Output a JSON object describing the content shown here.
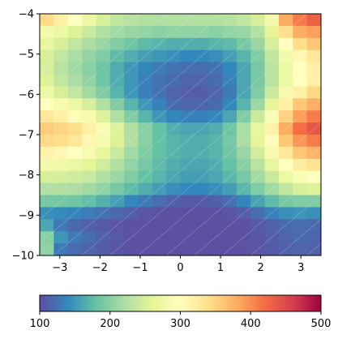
{
  "chart_data": {
    "type": "heatmap",
    "title": "",
    "xlabel": "",
    "ylabel": "",
    "xlim": [
      -3.5,
      3.5
    ],
    "ylim": [
      -10,
      -4
    ],
    "x_ticks": [
      -3,
      -2,
      -1,
      0,
      1,
      2,
      3
    ],
    "x_tick_labels": [
      "−3",
      "−2",
      "−1",
      "0",
      "1",
      "2",
      "3"
    ],
    "y_ticks": [
      -10,
      -9,
      -8,
      -7,
      -6,
      -5,
      -4
    ],
    "y_tick_labels": [
      "−10",
      "−9",
      "−8",
      "−7",
      "−6",
      "−5",
      "−4"
    ],
    "colormap": "Spectral_r",
    "colormap_stops": [
      "#5e4fa2",
      "#3288bd",
      "#66c2a5",
      "#abdda4",
      "#e6f598",
      "#ffffbf",
      "#fee08b",
      "#fdae61",
      "#f46d43",
      "#d53e4f",
      "#9e0142"
    ],
    "color_range": [
      100,
      500
    ],
    "colorbar": {
      "orientation": "horizontal",
      "placement": "bottom",
      "ticks": [
        100,
        200,
        300,
        400,
        500
      ],
      "tick_labels": [
        "100",
        "200",
        "300",
        "400",
        "500"
      ]
    },
    "grid": false,
    "x_centers": [
      -3.325,
      -2.975,
      -2.625,
      -2.275,
      -1.925,
      -1.575,
      -1.225,
      -0.875,
      -0.525,
      -0.175,
      0.175,
      0.525,
      0.875,
      1.225,
      1.575,
      1.925,
      2.275,
      2.625,
      2.975,
      3.325
    ],
    "y_centers": [
      -9.85,
      -9.55,
      -9.25,
      -8.95,
      -8.65,
      -8.35,
      -8.05,
      -7.75,
      -7.45,
      -7.15,
      -6.85,
      -6.55,
      -6.25,
      -5.95,
      -5.65,
      -5.35,
      -5.05,
      -4.75,
      -4.45,
      -4.15
    ],
    "z_rows_top_to_bottom": [
      [
        345,
        320,
        300,
        270,
        250,
        235,
        228,
        225,
        225,
        225,
        225,
        225,
        225,
        228,
        235,
        250,
        280,
        380,
        410,
        430
      ],
      [
        280,
        270,
        255,
        240,
        225,
        215,
        210,
        205,
        200,
        205,
        205,
        205,
        200,
        205,
        210,
        225,
        260,
        340,
        380,
        390
      ],
      [
        265,
        250,
        235,
        220,
        210,
        195,
        185,
        175,
        170,
        165,
        165,
        165,
        170,
        175,
        190,
        210,
        250,
        300,
        340,
        360
      ],
      [
        250,
        235,
        220,
        205,
        195,
        175,
        165,
        155,
        150,
        145,
        140,
        140,
        145,
        155,
        170,
        195,
        235,
        280,
        310,
        330
      ],
      [
        250,
        230,
        215,
        200,
        185,
        165,
        150,
        140,
        130,
        125,
        120,
        120,
        125,
        140,
        160,
        190,
        230,
        270,
        300,
        320
      ],
      [
        255,
        235,
        220,
        205,
        185,
        165,
        150,
        135,
        125,
        120,
        115,
        115,
        120,
        135,
        160,
        190,
        230,
        270,
        300,
        320
      ],
      [
        270,
        250,
        235,
        215,
        195,
        170,
        150,
        135,
        125,
        115,
        110,
        110,
        115,
        130,
        160,
        195,
        240,
        285,
        320,
        345
      ],
      [
        300,
        285,
        270,
        250,
        225,
        195,
        170,
        150,
        135,
        120,
        115,
        115,
        120,
        140,
        170,
        210,
        260,
        320,
        360,
        380
      ],
      [
        330,
        320,
        305,
        285,
        255,
        225,
        195,
        170,
        150,
        140,
        135,
        135,
        140,
        160,
        195,
        240,
        290,
        350,
        390,
        410
      ],
      [
        355,
        350,
        340,
        320,
        290,
        255,
        225,
        200,
        180,
        165,
        160,
        160,
        165,
        185,
        220,
        265,
        315,
        380,
        420,
        440
      ],
      [
        345,
        340,
        330,
        310,
        285,
        255,
        225,
        200,
        180,
        170,
        165,
        165,
        170,
        190,
        220,
        260,
        305,
        360,
        395,
        410
      ],
      [
        315,
        310,
        300,
        285,
        265,
        240,
        215,
        195,
        180,
        170,
        165,
        165,
        170,
        185,
        210,
        245,
        285,
        330,
        360,
        375
      ],
      [
        280,
        275,
        270,
        260,
        245,
        225,
        205,
        190,
        175,
        165,
        160,
        160,
        165,
        180,
        200,
        230,
        265,
        300,
        325,
        335
      ],
      [
        250,
        248,
        245,
        238,
        225,
        210,
        195,
        180,
        170,
        160,
        155,
        155,
        160,
        172,
        190,
        215,
        240,
        270,
        290,
        300
      ],
      [
        225,
        225,
        222,
        215,
        205,
        190,
        175,
        165,
        155,
        145,
        140,
        140,
        145,
        155,
        172,
        195,
        215,
        235,
        250,
        255
      ],
      [
        190,
        188,
        185,
        178,
        168,
        155,
        140,
        130,
        120,
        112,
        108,
        108,
        112,
        122,
        138,
        158,
        175,
        190,
        195,
        195
      ],
      [
        145,
        142,
        138,
        132,
        125,
        118,
        110,
        105,
        102,
        100,
        100,
        100,
        100,
        103,
        110,
        122,
        135,
        145,
        148,
        145
      ],
      [
        160,
        130,
        118,
        112,
        108,
        104,
        102,
        100,
        100,
        100,
        100,
        100,
        100,
        100,
        102,
        106,
        112,
        118,
        120,
        118
      ],
      [
        200,
        150,
        130,
        120,
        112,
        106,
        102,
        100,
        100,
        100,
        100,
        100,
        100,
        100,
        102,
        105,
        110,
        115,
        118,
        115
      ],
      [
        205,
        130,
        120,
        115,
        110,
        105,
        102,
        100,
        100,
        100,
        100,
        100,
        100,
        100,
        102,
        104,
        108,
        112,
        115,
        112
      ]
    ]
  }
}
